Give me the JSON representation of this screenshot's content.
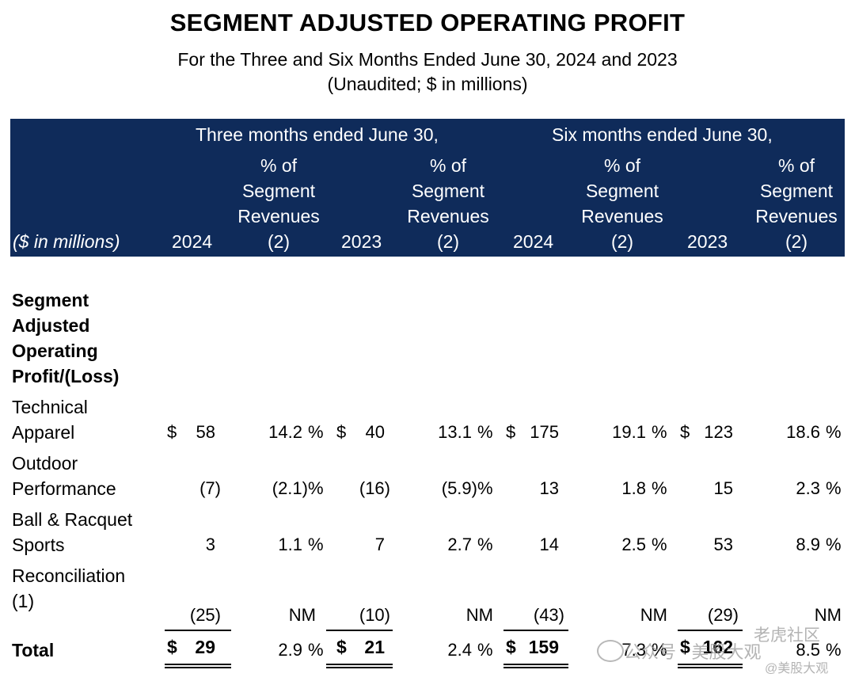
{
  "header": {
    "title": "SEGMENT ADJUSTED OPERATING PROFIT",
    "subtitle_line1": "For the Three and Six Months Ended June 30, 2024 and 2023",
    "subtitle_line2": "(Unaudited; $ in millions)"
  },
  "table_header": {
    "group_three": "Three months ended June 30,",
    "group_six": "Six months ended June 30,",
    "row_label": "($ in millions)",
    "year_2024": "2024",
    "year_2023": "2023",
    "pct_line1": "% of",
    "pct_line2": "Segment",
    "pct_line3": "Revenues",
    "pct_line4": "(2)"
  },
  "section": {
    "line1": "Segment",
    "line2": "Adjusted",
    "line3": "Operating",
    "line4": "Profit/(Loss)"
  },
  "rows": [
    {
      "label_line1": "Technical",
      "label_line2": "Apparel",
      "cur1": "$",
      "v1": "58",
      "p1": "14.2",
      "pct1": "%",
      "cur2": "$",
      "v2": "40",
      "p2": "13.1",
      "pct2": "%",
      "cur3": "$",
      "v3": "175",
      "p3": "19.1",
      "pct3": "%",
      "cur4": "$",
      "v4": "123",
      "p4": "18.6",
      "pct4": "%"
    },
    {
      "label_line1": "Outdoor",
      "label_line2": "Performance",
      "v1": "(7)",
      "p1": "(2.1)",
      "pct1": "%",
      "v2": "(16)",
      "p2": "(5.9)",
      "pct2": "%",
      "v3": "13",
      "p3": "1.8",
      "pct3": "%",
      "v4": "15",
      "p4": "2.3",
      "pct4": "%"
    },
    {
      "label_line1": "Ball & Racquet",
      "label_line2": "Sports",
      "v1": "3",
      "p1": "1.1",
      "pct1": "%",
      "v2": "7",
      "p2": "2.7",
      "pct2": "%",
      "v3": "14",
      "p3": "2.5",
      "pct3": "%",
      "v4": "53",
      "p4": "8.9",
      "pct4": "%"
    },
    {
      "label_line1": "Reconciliation",
      "label_line2": "(1)",
      "v1": "(25)",
      "p1": "NM",
      "v2": "(10)",
      "p2": "NM",
      "v3": "(43)",
      "p3": "NM",
      "v4": "(29)",
      "p4": "NM"
    }
  ],
  "total": {
    "label": "Total",
    "cur1": "$",
    "v1": "29",
    "p1": "2.9",
    "pct1": "%",
    "cur2": "$",
    "v2": "21",
    "p2": "2.4",
    "pct2": "%",
    "cur3": "$",
    "v3": "159",
    "p3": "7.3",
    "pct3": "%",
    "cur4": "$",
    "v4": "162",
    "p4": "8.5",
    "pct4": "%"
  },
  "watermark": {
    "text1": "公众号 · 美股大观",
    "text2": "老虎社区",
    "text3": "@美股大观"
  }
}
